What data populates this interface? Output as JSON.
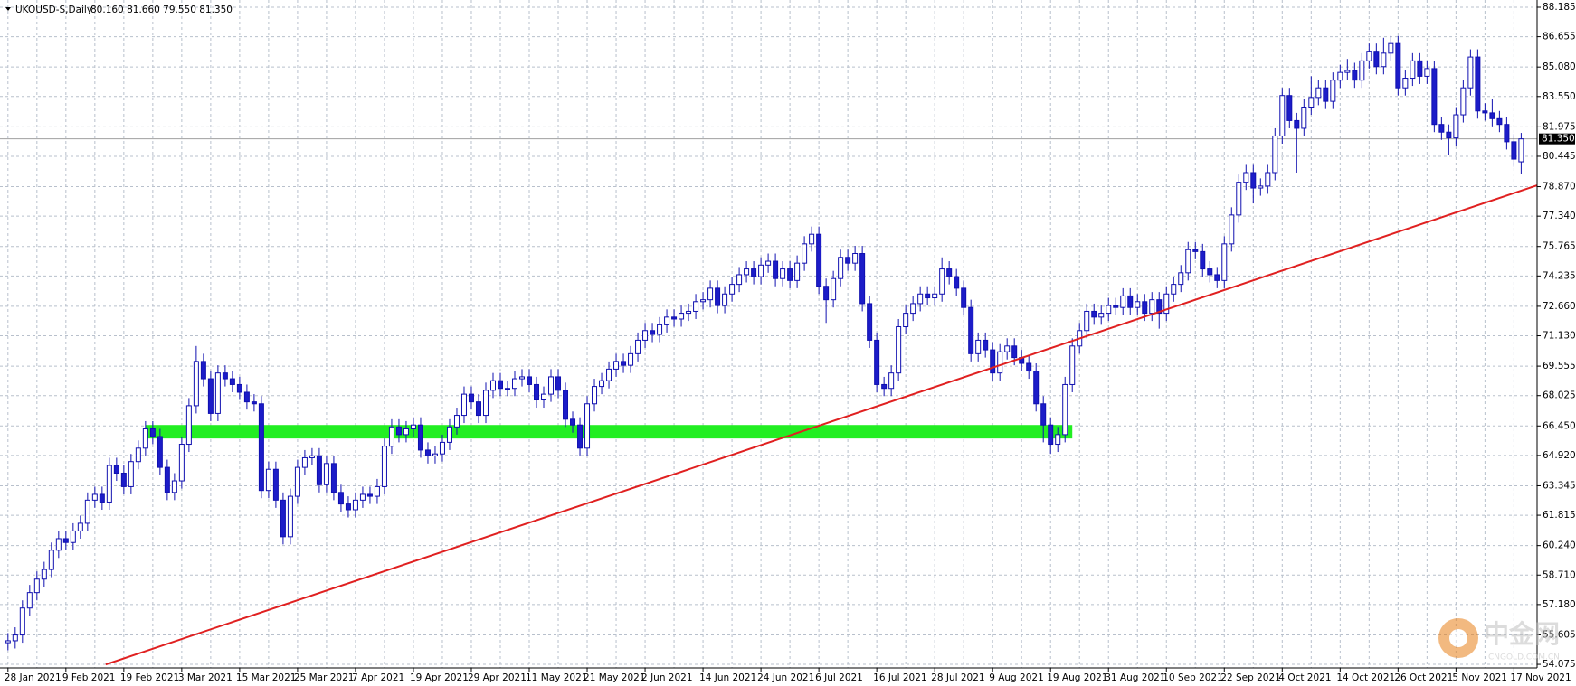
{
  "chart_data": {
    "type": "candlestick",
    "legend_text": "UKOUSD-S,Daily",
    "ohlc_text": "80.160 81.660 79.550 81.350",
    "bull_color": "#ffffff",
    "bear_color": "#1c1cc8",
    "line_color": "#1010b0",
    "grid": true,
    "categories": [
      "28 Jan 2021",
      null,
      null,
      null,
      null,
      null,
      null,
      null,
      "9 Feb 2021",
      null,
      null,
      null,
      null,
      null,
      null,
      null,
      "19 Feb 2021",
      null,
      null,
      null,
      null,
      null,
      null,
      null,
      "3 Mar 2021",
      null,
      null,
      null,
      null,
      null,
      null,
      null,
      "15 Mar 2021",
      null,
      null,
      null,
      null,
      null,
      null,
      null,
      "25 Mar 2021",
      null,
      null,
      null,
      null,
      null,
      null,
      null,
      "7 Apr 2021",
      null,
      null,
      null,
      null,
      null,
      null,
      null,
      "19 Apr 2021",
      null,
      null,
      null,
      null,
      null,
      null,
      null,
      "29 Apr 2021",
      null,
      null,
      null,
      null,
      null,
      null,
      null,
      "11 May 2021",
      null,
      null,
      null,
      null,
      null,
      null,
      null,
      "21 May 2021",
      null,
      null,
      null,
      null,
      null,
      null,
      null,
      "2 Jun 2021",
      null,
      null,
      null,
      null,
      null,
      null,
      null,
      "14 Jun 2021",
      null,
      null,
      null,
      null,
      null,
      null,
      null,
      "24 Jun 2021",
      null,
      null,
      null,
      null,
      null,
      null,
      null,
      "6 Jul 2021",
      null,
      null,
      null,
      null,
      null,
      null,
      null,
      "16 Jul 2021",
      null,
      null,
      null,
      null,
      null,
      null,
      null,
      "28 Jul 2021",
      null,
      null,
      null,
      null,
      null,
      null,
      null,
      "9 Aug 2021",
      null,
      null,
      null,
      null,
      null,
      null,
      null,
      "19 Aug 2021",
      null,
      null,
      null,
      null,
      null,
      null,
      null,
      "31 Aug 2021",
      null,
      null,
      null,
      null,
      null,
      null,
      null,
      "10 Sep 2021",
      null,
      null,
      null,
      null,
      null,
      null,
      null,
      "22 Sep 2021",
      null,
      null,
      null,
      null,
      null,
      null,
      null,
      "4 Oct 2021",
      null,
      null,
      null,
      null,
      null,
      null,
      null,
      "14 Oct 2021",
      null,
      null,
      null,
      null,
      null,
      null,
      null,
      "26 Oct 2021",
      null,
      null,
      null,
      null,
      null,
      null,
      null,
      "5 Nov 2021",
      null,
      null,
      null,
      null,
      null,
      null,
      null,
      "17 Nov 2021",
      null
    ],
    "open": [
      55.2,
      55.3,
      55.6,
      57.0,
      57.8,
      58.5,
      59.0,
      60.0,
      60.6,
      60.4,
      61.0,
      61.4,
      62.6,
      62.9,
      62.5,
      64.4,
      64.0,
      63.3,
      64.6,
      65.3,
      66.3,
      65.9,
      64.3,
      63.0,
      63.6,
      65.5,
      67.5,
      69.8,
      68.9,
      67.1,
      69.2,
      68.9,
      68.6,
      68.2,
      67.7,
      67.6,
      63.1,
      64.2,
      62.6,
      60.7,
      62.8,
      64.3,
      64.8,
      64.9,
      63.4,
      64.5,
      63.0,
      62.4,
      62.1,
      62.6,
      62.9,
      62.8,
      63.3,
      65.4,
      66.4,
      66.0,
      66.3,
      66.5,
      65.2,
      64.9,
      65.0,
      65.6,
      66.4,
      67.0,
      68.1,
      67.7,
      67.0,
      68.3,
      68.8,
      68.4,
      68.4,
      68.9,
      69.0,
      68.6,
      67.8,
      68.1,
      69.0,
      68.3,
      66.8,
      66.5,
      65.3,
      67.6,
      68.5,
      68.8,
      69.4,
      69.8,
      69.6,
      70.2,
      70.9,
      71.4,
      71.2,
      71.7,
      72.1,
      72.0,
      72.3,
      72.4,
      72.9,
      73.0,
      73.6,
      72.7,
      73.3,
      73.8,
      74.3,
      74.6,
      74.2,
      74.8,
      75.0,
      74.1,
      74.6,
      74.0,
      74.9,
      75.9,
      76.4,
      73.7,
      73.0,
      74.1,
      75.2,
      74.9,
      75.4,
      72.8,
      70.9,
      68.6,
      68.4,
      69.2,
      71.6,
      72.3,
      72.8,
      73.3,
      73.1,
      73.3,
      74.6,
      74.2,
      73.6,
      72.6,
      70.2,
      70.9,
      70.4,
      69.2,
      70.3,
      70.6,
      70.0,
      69.7,
      69.3,
      67.6,
      66.5,
      65.5,
      66.0,
      68.6,
      70.6,
      71.4,
      72.4,
      72.1,
      72.3,
      72.7,
      72.6,
      73.2,
      72.6,
      72.9,
      72.3,
      73.0,
      72.3,
      73.3,
      73.8,
      74.4,
      75.6,
      75.5,
      74.6,
      74.3,
      74.0,
      75.9,
      77.4,
      79.1,
      79.6,
      78.8,
      78.9,
      79.6,
      81.5,
      83.6,
      82.3,
      81.9,
      83.0,
      83.5,
      84.0,
      83.3,
      84.4,
      84.8,
      84.9,
      84.4,
      85.4,
      85.9,
      85.1,
      85.8,
      86.3,
      84.0,
      84.5,
      85.4,
      84.6,
      85.0,
      82.1,
      81.7,
      81.4,
      82.6,
      84.0,
      85.6,
      82.8,
      82.7,
      82.4,
      82.1,
      81.2,
      80.16
    ],
    "high": [
      55.7,
      56.0,
      57.4,
      58.2,
      58.9,
      59.4,
      60.4,
      61.0,
      61.0,
      61.4,
      61.8,
      63.0,
      63.3,
      63.3,
      64.8,
      64.8,
      64.4,
      65.0,
      65.7,
      66.7,
      66.7,
      66.3,
      64.7,
      64.0,
      65.9,
      67.9,
      70.6,
      70.2,
      69.3,
      69.6,
      69.6,
      69.3,
      69.0,
      68.6,
      68.1,
      68.0,
      64.6,
      64.6,
      63.0,
      63.2,
      64.7,
      65.2,
      65.3,
      65.3,
      64.9,
      64.9,
      63.4,
      62.8,
      63.0,
      63.3,
      63.3,
      63.7,
      65.8,
      66.8,
      66.8,
      66.7,
      66.9,
      66.9,
      65.6,
      65.4,
      66.0,
      66.8,
      67.4,
      68.5,
      68.5,
      68.1,
      68.7,
      69.2,
      69.2,
      68.8,
      69.3,
      69.4,
      69.4,
      69.0,
      68.5,
      69.4,
      69.4,
      68.7,
      67.2,
      66.9,
      68.0,
      68.9,
      69.2,
      69.8,
      70.2,
      70.2,
      70.6,
      71.3,
      71.8,
      71.8,
      72.1,
      72.5,
      72.5,
      72.7,
      72.8,
      73.3,
      73.4,
      74.0,
      74.0,
      73.7,
      74.2,
      74.7,
      75.0,
      75.0,
      75.2,
      75.4,
      75.4,
      75.0,
      75.0,
      75.3,
      76.3,
      76.8,
      76.8,
      74.1,
      74.5,
      75.6,
      75.6,
      75.8,
      75.8,
      73.2,
      71.3,
      69.0,
      69.6,
      72.0,
      72.7,
      73.2,
      73.7,
      73.7,
      73.7,
      75.2,
      75.0,
      74.6,
      74.0,
      73.0,
      71.3,
      71.3,
      70.8,
      70.7,
      71.0,
      71.0,
      70.4,
      70.1,
      69.7,
      68.0,
      66.9,
      66.4,
      69.0,
      71.0,
      71.8,
      72.8,
      72.8,
      72.7,
      73.1,
      73.1,
      73.6,
      73.6,
      73.3,
      73.3,
      73.4,
      73.4,
      73.7,
      74.2,
      74.8,
      76.0,
      76.0,
      75.9,
      75.0,
      74.7,
      76.3,
      77.8,
      79.5,
      80.0,
      80.0,
      79.3,
      80.0,
      81.9,
      84.0,
      84.0,
      82.7,
      83.4,
      84.6,
      84.4,
      84.4,
      84.8,
      85.2,
      85.5,
      85.3,
      85.8,
      86.3,
      86.3,
      86.6,
      86.7,
      86.7,
      84.9,
      85.8,
      85.8,
      85.4,
      85.4,
      82.5,
      82.1,
      83.0,
      84.4,
      86.0,
      86.0,
      83.2,
      83.4,
      82.8,
      82.5,
      81.6,
      81.66
    ],
    "low": [
      54.8,
      54.9,
      55.2,
      56.6,
      57.4,
      58.1,
      58.6,
      59.6,
      60.0,
      60.0,
      60.6,
      61.0,
      62.2,
      62.1,
      62.1,
      63.6,
      62.9,
      62.9,
      64.2,
      64.9,
      65.5,
      63.9,
      62.6,
      62.6,
      63.2,
      65.1,
      67.1,
      68.5,
      66.7,
      66.7,
      68.5,
      68.2,
      67.8,
      67.3,
      67.2,
      62.7,
      62.7,
      62.2,
      60.3,
      60.3,
      62.4,
      63.9,
      64.4,
      63.0,
      63.0,
      62.6,
      62.0,
      61.7,
      61.7,
      62.2,
      62.4,
      62.4,
      62.9,
      65.0,
      65.6,
      65.6,
      65.9,
      64.8,
      64.5,
      64.5,
      64.6,
      65.2,
      66.0,
      66.6,
      67.3,
      66.6,
      66.6,
      67.9,
      68.0,
      68.0,
      68.0,
      68.5,
      68.2,
      67.4,
      67.4,
      67.7,
      67.9,
      66.4,
      66.1,
      64.9,
      64.9,
      67.2,
      68.1,
      68.4,
      69.0,
      69.2,
      69.2,
      69.8,
      70.5,
      70.8,
      70.8,
      71.3,
      71.6,
      71.6,
      71.9,
      72.0,
      72.5,
      72.6,
      72.3,
      72.3,
      72.9,
      73.4,
      73.9,
      73.8,
      73.8,
      74.4,
      73.7,
      73.7,
      73.6,
      73.6,
      74.5,
      75.5,
      73.3,
      71.8,
      72.6,
      73.7,
      74.5,
      74.5,
      72.4,
      70.5,
      68.2,
      68.0,
      68.0,
      68.8,
      71.2,
      71.9,
      72.4,
      72.7,
      72.7,
      72.9,
      73.8,
      73.2,
      72.2,
      69.8,
      69.8,
      70.0,
      68.8,
      68.8,
      69.9,
      69.6,
      69.3,
      68.9,
      67.2,
      65.6,
      65.0,
      65.1,
      65.6,
      68.2,
      70.2,
      71.0,
      71.7,
      71.7,
      71.9,
      72.2,
      72.2,
      72.2,
      72.2,
      71.9,
      71.9,
      71.5,
      71.9,
      72.9,
      73.4,
      74.0,
      75.1,
      74.2,
      73.9,
      73.6,
      73.6,
      75.5,
      77.0,
      78.7,
      78.0,
      78.4,
      78.5,
      79.2,
      81.1,
      81.9,
      79.6,
      81.5,
      82.6,
      83.1,
      82.9,
      82.9,
      84.0,
      84.4,
      84.0,
      84.0,
      85.0,
      84.7,
      84.7,
      85.4,
      83.6,
      83.6,
      84.1,
      84.2,
      84.2,
      81.7,
      81.3,
      80.5,
      81.0,
      82.2,
      83.6,
      82.4,
      82.3,
      82.0,
      81.7,
      80.8,
      79.9,
      79.55
    ],
    "close": [
      55.3,
      55.6,
      57.0,
      57.8,
      58.5,
      59.0,
      60.0,
      60.6,
      60.4,
      61.0,
      61.4,
      62.6,
      62.9,
      62.5,
      64.4,
      64.0,
      63.3,
      64.6,
      65.3,
      66.3,
      65.9,
      64.3,
      63.0,
      63.6,
      65.5,
      67.5,
      69.8,
      68.9,
      67.1,
      69.2,
      68.9,
      68.6,
      68.2,
      67.7,
      67.6,
      63.1,
      64.2,
      62.6,
      60.7,
      62.8,
      64.3,
      64.8,
      64.9,
      63.4,
      64.5,
      63.0,
      62.4,
      62.1,
      62.6,
      62.9,
      62.8,
      63.3,
      65.4,
      66.4,
      66.0,
      66.3,
      66.5,
      65.2,
      64.9,
      65.0,
      65.6,
      66.4,
      67.0,
      68.1,
      67.7,
      67.0,
      68.3,
      68.8,
      68.4,
      68.4,
      68.9,
      69.0,
      68.6,
      67.8,
      68.1,
      69.0,
      68.3,
      66.8,
      66.5,
      65.3,
      67.6,
      68.5,
      68.8,
      69.4,
      69.8,
      69.6,
      70.2,
      70.9,
      71.4,
      71.2,
      71.7,
      72.1,
      72.0,
      72.3,
      72.4,
      72.9,
      73.0,
      73.6,
      72.7,
      73.3,
      73.8,
      74.3,
      74.6,
      74.2,
      74.8,
      75.0,
      74.1,
      74.6,
      74.0,
      74.9,
      75.9,
      76.4,
      73.7,
      73.0,
      74.1,
      75.2,
      74.9,
      75.4,
      72.8,
      70.9,
      68.6,
      68.4,
      69.2,
      71.6,
      72.3,
      72.8,
      73.3,
      73.1,
      73.3,
      74.6,
      74.2,
      73.6,
      72.6,
      70.2,
      70.9,
      70.4,
      69.2,
      70.3,
      70.6,
      70.0,
      69.7,
      69.3,
      67.6,
      66.5,
      65.5,
      66.0,
      68.6,
      70.6,
      71.4,
      72.4,
      72.1,
      72.3,
      72.7,
      72.6,
      73.2,
      72.6,
      72.9,
      72.3,
      73.0,
      72.3,
      73.3,
      73.8,
      74.4,
      75.6,
      75.5,
      74.6,
      74.3,
      74.0,
      75.9,
      77.4,
      79.1,
      79.6,
      78.8,
      78.9,
      79.6,
      81.5,
      83.6,
      82.3,
      81.9,
      83.0,
      83.5,
      84.0,
      83.3,
      84.4,
      84.8,
      84.9,
      84.4,
      85.4,
      85.9,
      85.1,
      85.8,
      86.3,
      84.0,
      84.5,
      85.4,
      84.6,
      85.0,
      82.1,
      81.7,
      81.4,
      82.6,
      84.0,
      85.6,
      82.8,
      82.7,
      82.4,
      82.1,
      81.2,
      80.3,
      81.35
    ],
    "xlim": [
      -1.1,
      211.2
    ],
    "ylim": [
      53.89,
      88.56
    ],
    "yticks": [
      88.185,
      86.655,
      {
        "value": 85.08,
        "label": "85.080"
      },
      {
        "value": 83.55,
        "label": "83.550"
      },
      81.975,
      80.445,
      {
        "value": 78.87,
        "label": "78.870"
      },
      {
        "value": 77.34,
        "label": "77.340"
      },
      75.765,
      74.235,
      {
        "value": 72.66,
        "label": "72.660"
      },
      {
        "value": 71.13,
        "label": "71.130"
      },
      69.555,
      68.025,
      {
        "value": 66.45,
        "label": "66.450"
      },
      {
        "value": 64.92,
        "label": "64.920"
      },
      63.345,
      61.815,
      {
        "value": 60.24,
        "label": "60.240"
      },
      {
        "value": 58.71,
        "label": "58.710"
      },
      {
        "value": 57.18,
        "label": "57.180"
      },
      55.605,
      54.075
    ],
    "price_line": {
      "value": 81.35,
      "label": "81.350"
    },
    "zone": {
      "x": [
        19,
        147
      ],
      "y": [
        65.8,
        66.5
      ],
      "color": "#22ee22"
    },
    "trendline": {
      "x": [
        13.5,
        211.2
      ],
      "y": [
        54.07,
        78.94
      ],
      "color": "#e02020"
    },
    "watermark": {
      "title": "中金网",
      "subtitle": "CNGOLD.COM.CN"
    }
  }
}
